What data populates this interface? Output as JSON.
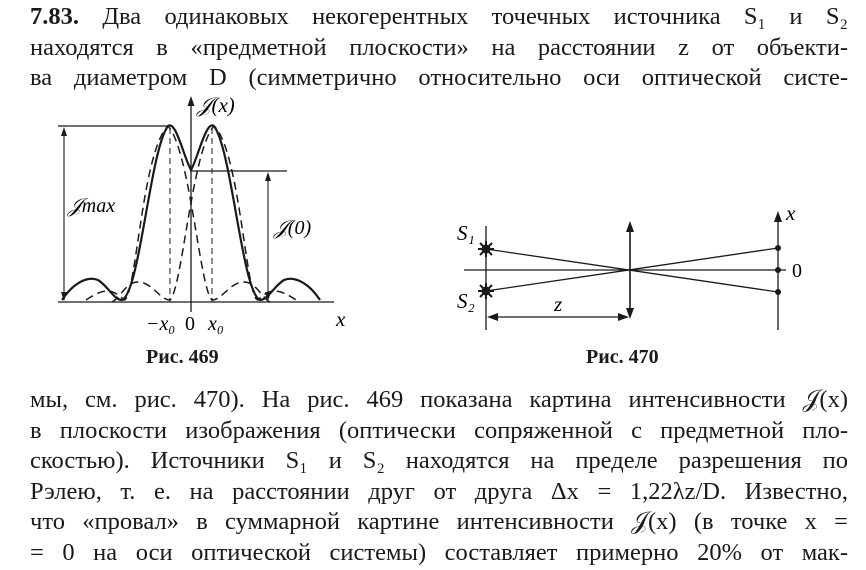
{
  "top_paragraph": {
    "problem_number": "7.83.",
    "line1": "Два одинаковых некогерентных точечных источника S₁ и S₂",
    "line2": "находятся в «предметной плоскости» на расстоянии z от объекти-",
    "line3": "ва диаметром D (симметрично относительно оси оптической систе-"
  },
  "figure469": {
    "ylabel": "𝒥(x)",
    "imax_label": "𝒥max",
    "i0_label": "𝒥(0)",
    "xlabel": "x",
    "tick_neg": "−x₀",
    "tick_zero": "0",
    "tick_pos": "x₀",
    "caption": "Рис. 469"
  },
  "figure470": {
    "s1_label": "S₁",
    "s2_label": "S₂",
    "z_label": "z",
    "x_label": "x",
    "zero_label": "0",
    "caption": "Рис. 470"
  },
  "bottom_paragraph": {
    "line1": "мы, см. рис. 470). На рис. 469 показана картина интенсивности 𝒥(x)",
    "line2": "в плоскости изображения (оптически сопряженной с предметной пло-",
    "line3": "скостью). Источники S₁ и S₂ находятся на пределе разрешения по",
    "line4": "Рэлею, т. е. на расстоянии друг от друга Δx = 1,22λz/D. Известно,",
    "line5": "что «провал» в суммарной картине интенсивности 𝒥(x) (в точке x =",
    "line6": "= 0 на оси оптической системы) составляет примерно 20% от мак-"
  }
}
